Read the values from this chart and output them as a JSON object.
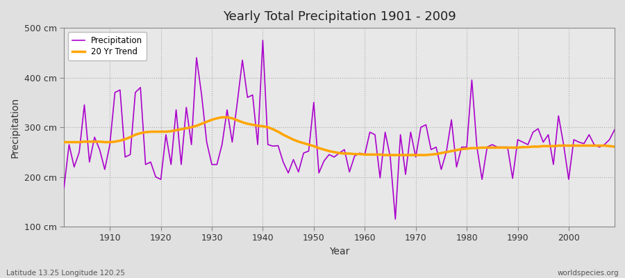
{
  "title": "Yearly Total Precipitation 1901 - 2009",
  "xlabel": "Year",
  "ylabel": "Precipitation",
  "subtitle": "Latitude 13.25 Longitude 120.25",
  "watermark": "worldspecies.org",
  "ylim": [
    100,
    500
  ],
  "yticks": [
    100,
    200,
    300,
    400,
    500
  ],
  "ytick_labels": [
    "100 cm",
    "200 cm",
    "300 cm",
    "400 cm",
    "500 cm"
  ],
  "precipitation_color": "#AA00CC",
  "trend_color": "#FFA500",
  "fig_bg_color": "#E0E0E0",
  "plot_bg_color": "#E8E8E8",
  "years": [
    1901,
    1902,
    1903,
    1904,
    1905,
    1906,
    1907,
    1908,
    1909,
    1910,
    1911,
    1912,
    1913,
    1914,
    1915,
    1916,
    1917,
    1918,
    1919,
    1920,
    1921,
    1922,
    1923,
    1924,
    1925,
    1926,
    1927,
    1928,
    1929,
    1930,
    1931,
    1932,
    1933,
    1934,
    1935,
    1936,
    1937,
    1938,
    1939,
    1940,
    1941,
    1942,
    1943,
    1944,
    1945,
    1946,
    1947,
    1948,
    1949,
    1950,
    1951,
    1952,
    1953,
    1954,
    1955,
    1956,
    1957,
    1958,
    1959,
    1960,
    1961,
    1962,
    1963,
    1964,
    1965,
    1966,
    1967,
    1968,
    1969,
    1970,
    1971,
    1972,
    1973,
    1974,
    1975,
    1976,
    1977,
    1978,
    1979,
    1980,
    1981,
    1982,
    1983,
    1984,
    1985,
    1986,
    1987,
    1988,
    1989,
    1990,
    1991,
    1992,
    1993,
    1994,
    1995,
    1996,
    1997,
    1998,
    1999,
    2000,
    2001,
    2002,
    2003,
    2004,
    2005,
    2006,
    2007,
    2008,
    2009
  ],
  "precipitation": [
    178,
    265,
    220,
    250,
    345,
    230,
    280,
    255,
    215,
    265,
    370,
    375,
    240,
    245,
    370,
    380,
    225,
    230,
    200,
    195,
    285,
    225,
    335,
    225,
    340,
    265,
    440,
    365,
    270,
    225,
    225,
    265,
    335,
    270,
    350,
    435,
    360,
    365,
    265,
    475,
    265,
    262,
    263,
    230,
    208,
    235,
    210,
    248,
    252,
    350,
    208,
    232,
    245,
    240,
    248,
    255,
    210,
    242,
    248,
    245,
    290,
    285,
    198,
    290,
    240,
    115,
    285,
    205,
    290,
    240,
    300,
    305,
    255,
    260,
    215,
    250,
    315,
    220,
    260,
    260,
    395,
    260,
    195,
    260,
    265,
    260,
    260,
    260,
    197,
    275,
    270,
    265,
    290,
    297,
    270,
    285,
    225,
    323,
    265,
    195,
    275,
    270,
    267,
    285,
    265,
    260,
    265,
    275,
    295
  ],
  "trend": [
    270,
    270,
    270,
    270,
    271,
    271,
    271,
    271,
    270,
    270,
    271,
    273,
    276,
    280,
    285,
    288,
    290,
    291,
    291,
    291,
    291,
    292,
    294,
    296,
    298,
    300,
    303,
    307,
    311,
    315,
    318,
    320,
    320,
    318,
    314,
    310,
    307,
    305,
    303,
    302,
    300,
    296,
    291,
    285,
    280,
    275,
    271,
    268,
    265,
    262,
    258,
    255,
    252,
    250,
    248,
    247,
    247,
    246,
    246,
    245,
    245,
    245,
    245,
    244,
    244,
    244,
    244,
    244,
    244,
    244,
    244,
    244,
    245,
    246,
    248,
    250,
    252,
    254,
    256,
    257,
    258,
    258,
    259,
    259,
    259,
    259,
    259,
    259,
    259,
    259,
    260,
    260,
    261,
    261,
    262,
    262,
    262,
    263,
    263,
    263,
    263,
    263,
    263,
    263,
    263,
    263,
    263,
    262,
    261
  ]
}
